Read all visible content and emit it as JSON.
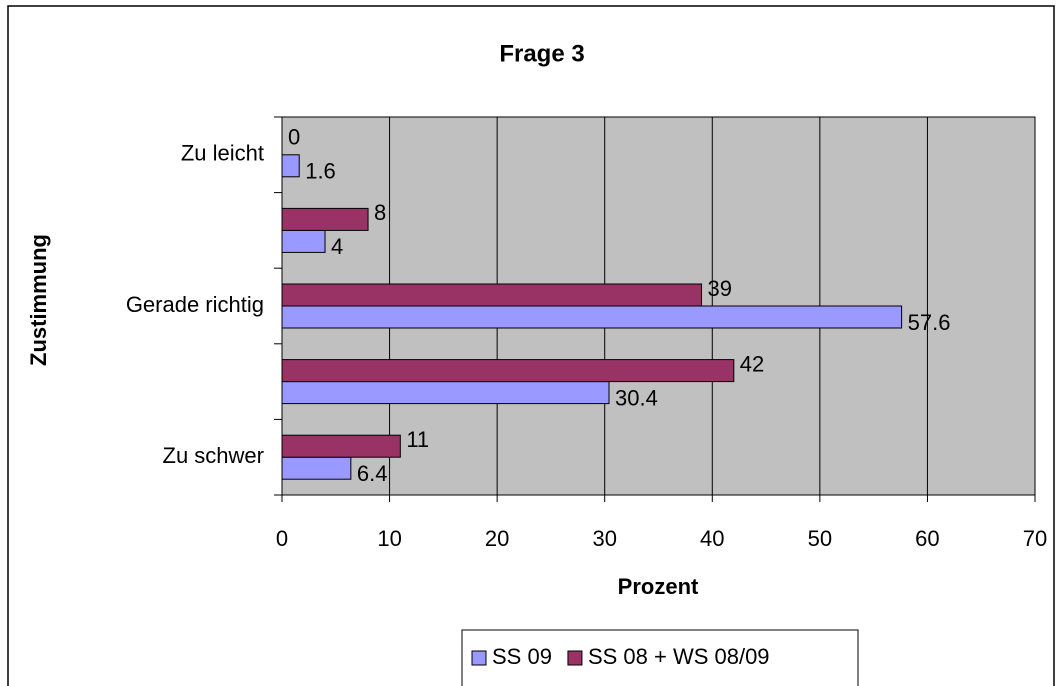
{
  "chart_data": {
    "type": "bar",
    "orientation": "horizontal",
    "title": "Frage 3",
    "x_label": "Prozent",
    "y_label": "Zustimmung",
    "categories": [
      "Zu leicht",
      null,
      "Gerade richtig",
      null,
      "Zu schwer"
    ],
    "series": [
      {
        "name": "SS 09",
        "color": "#9999ff",
        "values": [
          1.6,
          4,
          57.6,
          30.4,
          6.4
        ]
      },
      {
        "name": "SS 08 + WS 08/09",
        "color": "#993366",
        "values": [
          0,
          8,
          39,
          42,
          11
        ]
      }
    ],
    "xlim": [
      0,
      70
    ],
    "xticks": [
      0,
      10,
      20,
      30,
      40,
      50,
      60,
      70
    ],
    "grid": true,
    "plot_background": "#c0c0c0",
    "legend": "bottom"
  }
}
